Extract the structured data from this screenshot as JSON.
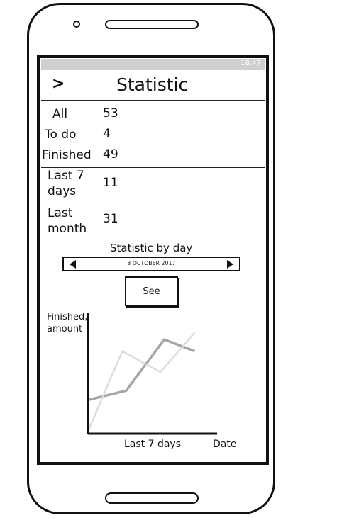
{
  "status_bar": {
    "time": "18:47"
  },
  "header": {
    "back_icon": "chevron-right-icon",
    "back_glyph": ">",
    "title": "Statistic"
  },
  "stats": {
    "rows": [
      {
        "label": "All",
        "value": "53"
      },
      {
        "label": "To do",
        "value": "4"
      },
      {
        "label": "Finished",
        "value": "49"
      }
    ],
    "last7_label_line1": "Last 7",
    "last7_label_line2": "days",
    "last7_value": "11",
    "lastmonth_label_line1": "Last",
    "lastmonth_label_line2": "month",
    "lastmonth_value": "31"
  },
  "by_day": {
    "heading": "Statistic by day",
    "date": "8 OCTOBER 2017",
    "see_label": "See"
  },
  "chart_data": {
    "type": "line",
    "ylabel_line1": "Finished,",
    "ylabel_line2": "amount",
    "xlabel": "Last 7 days",
    "xaxis_end_label": "Date",
    "x": [
      1,
      2,
      3,
      4,
      5
    ],
    "series": [
      {
        "color": "#a6a6a6",
        "values": [
          2.9,
          3.7,
          8.1,
          7.4,
          null
        ]
      },
      {
        "color": "#dcdcdc",
        "values": [
          0.2,
          7.0,
          5.3,
          8.4,
          null
        ]
      }
    ],
    "series_points": [
      [
        [
          1,
          2.9
        ],
        [
          2,
          3.7
        ],
        [
          3,
          8.1
        ],
        [
          3.8,
          7.1
        ]
      ],
      [
        [
          1,
          0.2
        ],
        [
          1.9,
          7.1
        ],
        [
          2.9,
          5.3
        ],
        [
          3.8,
          8.7
        ]
      ]
    ],
    "xlim": [
      1,
      4.2
    ],
    "ylim": [
      0,
      10
    ],
    "grid": false
  }
}
